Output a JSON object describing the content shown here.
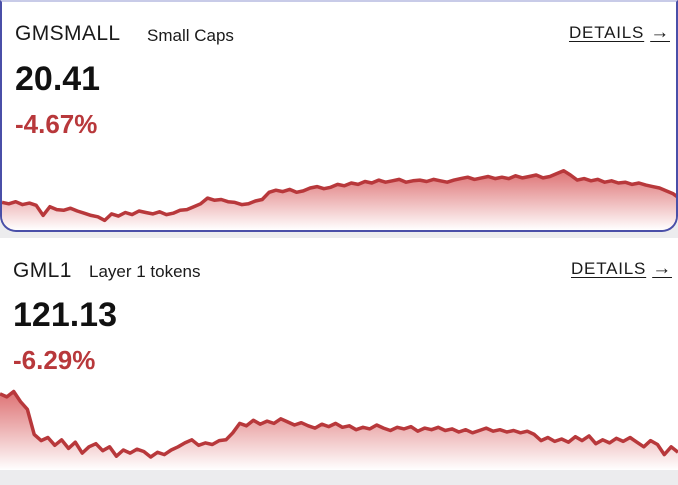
{
  "colors": {
    "negative": "#b8383b",
    "line": "#b8383b",
    "fill_top": "#d85a5c",
    "fill_bottom": "#ffffff"
  },
  "cards": [
    {
      "ticker": "GMSMALL",
      "subtitle": "Small Caps",
      "price": "20.41",
      "change": "-4.67%",
      "details_label": "DETAILS",
      "arrow_icon": "arrow-right-icon",
      "sparkline": [
        0.3,
        0.28,
        0.31,
        0.27,
        0.29,
        0.26,
        0.12,
        0.24,
        0.2,
        0.19,
        0.22,
        0.18,
        0.15,
        0.12,
        0.1,
        0.05,
        0.14,
        0.11,
        0.16,
        0.13,
        0.18,
        0.16,
        0.14,
        0.17,
        0.13,
        0.15,
        0.19,
        0.2,
        0.24,
        0.28,
        0.36,
        0.33,
        0.34,
        0.31,
        0.3,
        0.27,
        0.28,
        0.32,
        0.34,
        0.44,
        0.47,
        0.45,
        0.48,
        0.44,
        0.46,
        0.5,
        0.52,
        0.49,
        0.51,
        0.55,
        0.53,
        0.57,
        0.55,
        0.59,
        0.57,
        0.61,
        0.58,
        0.6,
        0.62,
        0.58,
        0.6,
        0.61,
        0.59,
        0.62,
        0.6,
        0.58,
        0.61,
        0.63,
        0.65,
        0.62,
        0.64,
        0.66,
        0.63,
        0.65,
        0.63,
        0.67,
        0.64,
        0.66,
        0.68,
        0.64,
        0.66,
        0.7,
        0.74,
        0.68,
        0.61,
        0.63,
        0.6,
        0.62,
        0.58,
        0.6,
        0.57,
        0.58,
        0.55,
        0.57,
        0.54,
        0.52,
        0.5,
        0.46,
        0.42,
        0.35
      ]
    },
    {
      "ticker": "GML1",
      "subtitle": "Layer 1 tokens",
      "price": "121.13",
      "change": "-6.29%",
      "details_label": "DETAILS",
      "arrow_icon": "arrow-right-icon",
      "sparkline": [
        0.9,
        0.86,
        0.93,
        0.8,
        0.7,
        0.38,
        0.3,
        0.34,
        0.24,
        0.31,
        0.2,
        0.28,
        0.14,
        0.22,
        0.26,
        0.17,
        0.22,
        0.1,
        0.18,
        0.14,
        0.19,
        0.16,
        0.09,
        0.15,
        0.12,
        0.18,
        0.22,
        0.27,
        0.31,
        0.24,
        0.27,
        0.25,
        0.3,
        0.31,
        0.4,
        0.52,
        0.49,
        0.56,
        0.51,
        0.55,
        0.52,
        0.58,
        0.54,
        0.5,
        0.53,
        0.49,
        0.46,
        0.51,
        0.48,
        0.52,
        0.47,
        0.49,
        0.44,
        0.47,
        0.45,
        0.5,
        0.46,
        0.43,
        0.47,
        0.45,
        0.48,
        0.42,
        0.46,
        0.44,
        0.47,
        0.43,
        0.45,
        0.41,
        0.44,
        0.4,
        0.43,
        0.46,
        0.42,
        0.44,
        0.41,
        0.43,
        0.4,
        0.42,
        0.38,
        0.3,
        0.34,
        0.29,
        0.32,
        0.28,
        0.35,
        0.3,
        0.36,
        0.26,
        0.31,
        0.27,
        0.33,
        0.29,
        0.34,
        0.28,
        0.22,
        0.3,
        0.25,
        0.12,
        0.22,
        0.15
      ]
    }
  ]
}
